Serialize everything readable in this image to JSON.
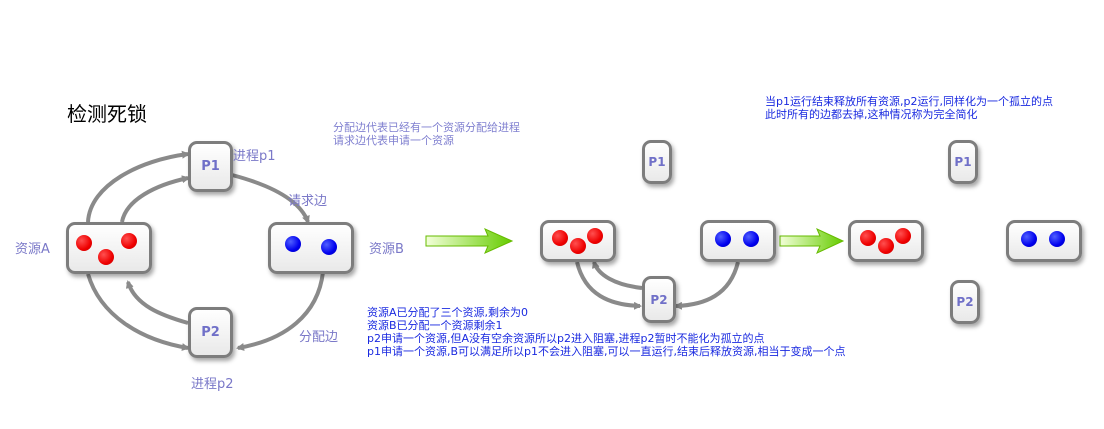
{
  "title": "检测死锁",
  "labels": {
    "resource_a": "资源A",
    "resource_b": "资源B",
    "process_p1": "进程p1",
    "process_p2": "进程p2",
    "request_edge": "请求边",
    "assign_edge": "分配边"
  },
  "nodes": {
    "p1": "P1",
    "p2": "P2"
  },
  "legend_note": [
    "分配边代表已经有一个资源分配给进程",
    "请求边代表申请一个资源"
  ],
  "explanation": [
    "资源A已分配了三个资源,剩余为0",
    "资源B已分配一个资源剩余1",
    "p2申请一个资源,但A没有空余资源所以p2进入阻塞,进程p2暂时不能化为孤立的点",
    "p1申请一个资源,B可以满足所以p1不会进入阻塞,可以一直运行,结束后释放资源,相当于变成一个点"
  ],
  "final_note": [
    "当p1运行结束释放所有资源,p2运行,同样化为一个孤立的点",
    "此时所有的边都去掉,这种情况称为完全简化"
  ],
  "colors": {
    "resource_red": "#ee0000",
    "resource_blue": "#0000ee",
    "transition_arrow": "#88dd22",
    "edge_gray": "#8a8a8a"
  }
}
